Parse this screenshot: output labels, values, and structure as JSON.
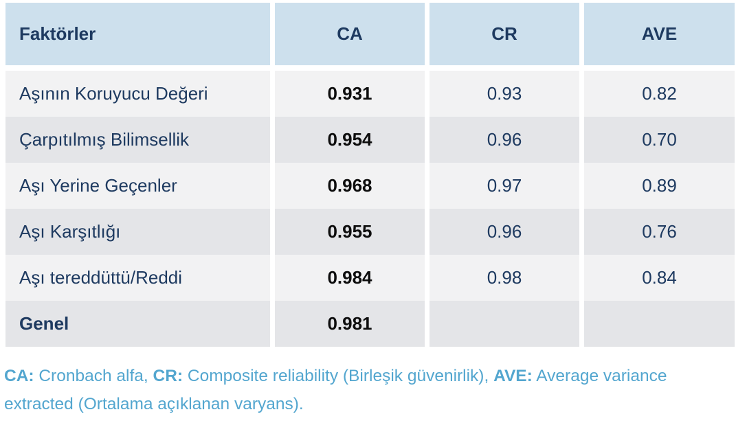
{
  "table": {
    "headers": {
      "factor": "Faktörler",
      "ca": "CA",
      "cr": "CR",
      "ave": "AVE"
    },
    "rows": [
      {
        "factor": "Aşının Koruyucu Değeri",
        "ca": "0.931",
        "cr": "0.93",
        "ave": "0.82"
      },
      {
        "factor": "Çarpıtılmış Bilimsellik",
        "ca": "0.954",
        "cr": "0.96",
        "ave": "0.70"
      },
      {
        "factor": "Aşı Yerine Geçenler",
        "ca": "0.968",
        "cr": "0.97",
        "ave": "0.89"
      },
      {
        "factor": "Aşı Karşıtlığı",
        "ca": "0.955",
        "cr": "0.96",
        "ave": "0.76"
      },
      {
        "factor": "Aşı tereddüttü/Reddi",
        "ca": "0.984",
        "cr": "0.98",
        "ave": "0.84"
      },
      {
        "factor": "Genel",
        "ca": "0.981",
        "cr": "",
        "ave": ""
      }
    ]
  },
  "footnote": {
    "ca_label": "CA:",
    "ca_text": " Cronbach alfa, ",
    "cr_label": "CR:",
    "cr_text": " Composite reliability (Birleşik güvenirlik), ",
    "ave_label": "AVE:",
    "ave_text": " Average variance extracted (Ortalama açıklanan varyans)."
  },
  "colors": {
    "header_bg": "#cde0ed",
    "row_light": "#f2f2f3",
    "row_dark": "#e4e5e8",
    "navy_text": "#1e3a60",
    "ca_value_text": "#0d0d0d",
    "footnote_text": "#53a6cf"
  }
}
